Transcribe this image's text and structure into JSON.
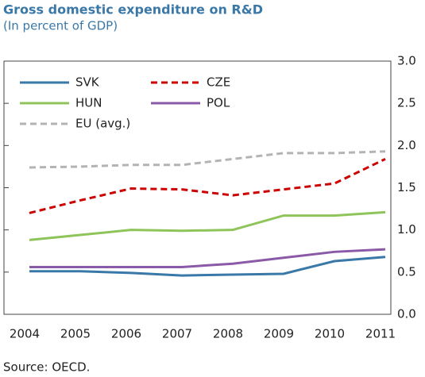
{
  "chart_data": {
    "type": "line",
    "title": "Gross domestic expenditure on R&D",
    "subtitle": "(In percent of GDP)",
    "source": "Source: OECD.",
    "categories": [
      "2004",
      "2005",
      "2006",
      "2007",
      "2008",
      "2009",
      "2010",
      "2011"
    ],
    "series": [
      {
        "name": "SVK",
        "color": "#3a78a8",
        "dash": false,
        "values": [
          0.51,
          0.51,
          0.49,
          0.46,
          0.47,
          0.48,
          0.63,
          0.68
        ]
      },
      {
        "name": "CZE",
        "color": "#cc0000",
        "dash": true,
        "values": [
          1.2,
          1.35,
          1.49,
          1.48,
          1.41,
          1.48,
          1.55,
          1.84
        ]
      },
      {
        "name": "HUN",
        "color": "#8fc45a",
        "dash": false,
        "values": [
          0.88,
          0.94,
          1.0,
          0.99,
          1.0,
          1.17,
          1.17,
          1.21
        ]
      },
      {
        "name": "POL",
        "color": "#8a5aa8",
        "dash": false,
        "values": [
          0.56,
          0.56,
          0.56,
          0.56,
          0.6,
          0.67,
          0.74,
          0.77
        ]
      },
      {
        "name": "EU (avg.)",
        "color": "#b3b3b3",
        "dash": true,
        "values": [
          1.74,
          1.75,
          1.77,
          1.77,
          1.84,
          1.91,
          1.91,
          1.93
        ]
      }
    ],
    "ylim": [
      0,
      3
    ],
    "yticks": [
      {
        "value": 0,
        "label": "0.0"
      },
      0.5,
      {
        "value": 1,
        "label": "1.0"
      },
      1.5,
      {
        "value": 2,
        "label": "2.0"
      },
      2.5,
      {
        "value": 3,
        "label": "3.0"
      }
    ],
    "legend": "upper-left"
  }
}
